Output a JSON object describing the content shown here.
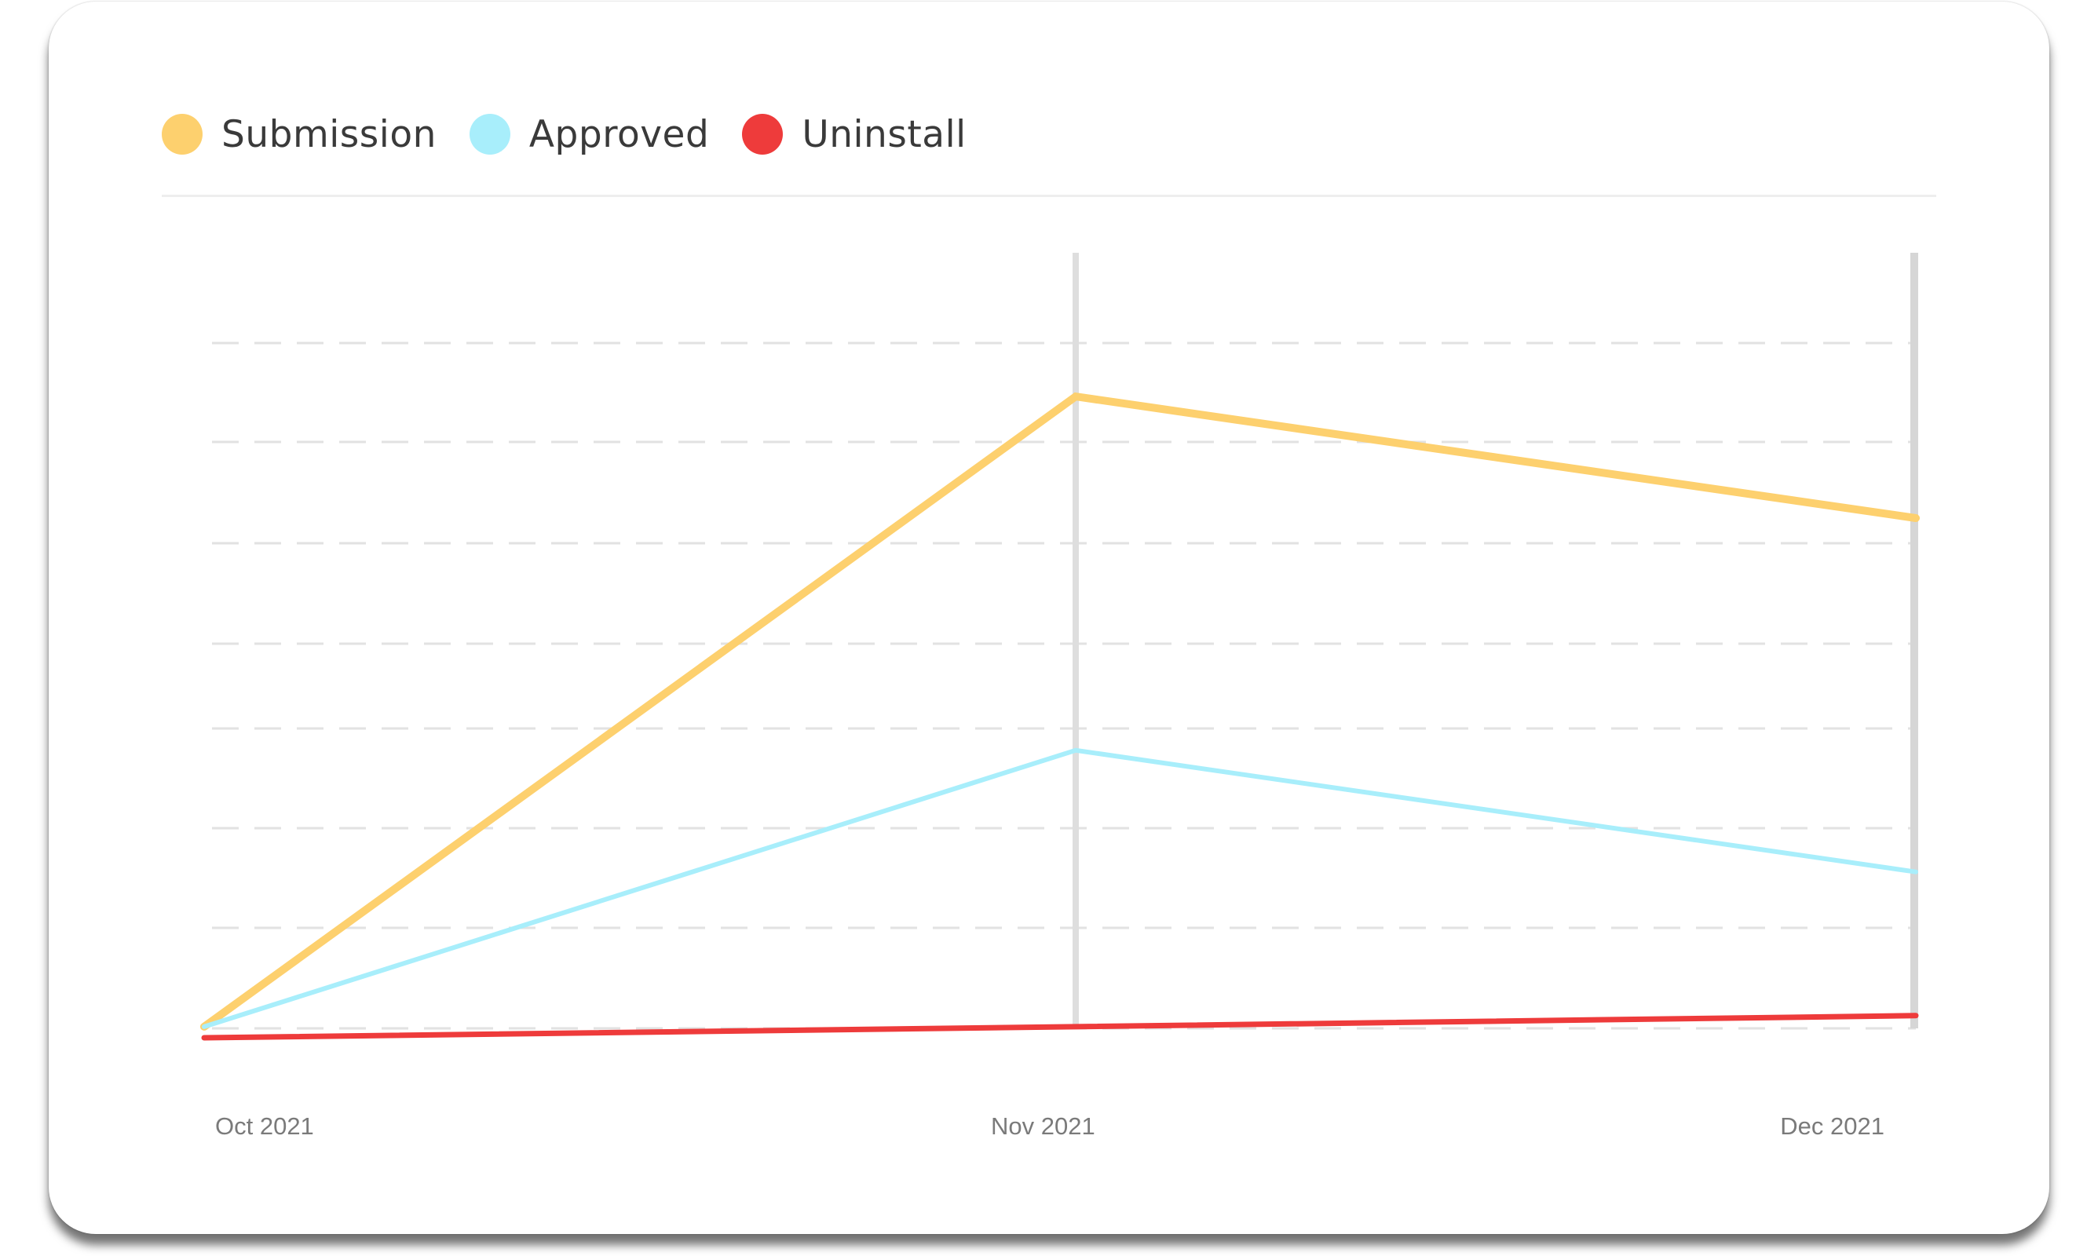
{
  "chart_data": {
    "type": "line",
    "categories": [
      "Oct 2021",
      "Nov 2021",
      "Dec 2021"
    ],
    "series": [
      {
        "name": "Submission",
        "color": "#FDD06E",
        "values": [
          0,
          57,
          46
        ]
      },
      {
        "name": "Approved",
        "color": "#A8EEFB",
        "values": [
          0,
          25,
          14
        ]
      },
      {
        "name": "Uninstall",
        "color": "#EE3B3B",
        "values": [
          -1,
          0,
          1
        ]
      }
    ],
    "ylim": [
      -1,
      70
    ],
    "grid": true,
    "legend": "top-left"
  }
}
